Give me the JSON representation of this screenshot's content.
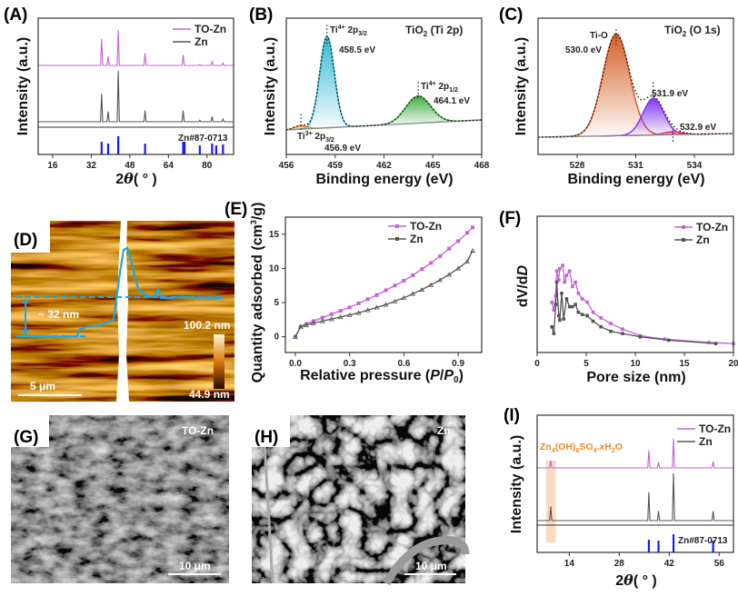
{
  "panels": {
    "A": "(A)",
    "B": "(B)",
    "C": "(C)",
    "D": "(D)",
    "E": "(E)",
    "F": "(F)",
    "G": "(G)",
    "H": "(H)",
    "I": "(I)"
  },
  "colors": {
    "to_zn": "#c462d6",
    "zn": "#555555",
    "reference": "#1a1aff",
    "highlight": "#f6d2b0",
    "afm_profile": "#1ea7e6"
  },
  "afm": {
    "step_label": "~ 32 nm",
    "colorbar_max": "100.2 nm",
    "colorbar_min": "44.9 nm",
    "scale_bar": "5  μm"
  },
  "sem_g": {
    "sample": "TO-Zn",
    "scale_bar": "10  μm"
  },
  "sem_h": {
    "sample": "Zn",
    "scale_bar": "10  μm"
  },
  "chart_data": [
    {
      "id": "A",
      "type": "line",
      "ylabel": "Intensity (a.u.)",
      "xlabel_base": "2",
      "xlabel_theta": "θ",
      "xlabel_unit": "( ° )",
      "xlim": [
        10,
        91
      ],
      "xticks": [
        "16",
        "32",
        "48",
        "64",
        "80"
      ],
      "legend": [
        "TO-Zn",
        "Zn"
      ],
      "legend_position": "top-right",
      "series": [
        {
          "name": "TO-Zn",
          "peaks": [
            [
              36.3,
              0.75
            ],
            [
              39.0,
              0.25
            ],
            [
              43.2,
              1.0
            ],
            [
              54.3,
              0.35
            ],
            [
              70.1,
              0.3
            ],
            [
              77.0,
              0.03
            ],
            [
              82.1,
              0.12
            ],
            [
              86.6,
              0.07
            ]
          ]
        },
        {
          "name": "Zn",
          "peaks": [
            [
              36.3,
              0.55
            ],
            [
              39.0,
              0.2
            ],
            [
              43.2,
              1.0
            ],
            [
              54.3,
              0.22
            ],
            [
              70.1,
              0.22
            ],
            [
              77.0,
              0.03
            ],
            [
              82.1,
              0.1
            ],
            [
              86.6,
              0.05
            ]
          ]
        }
      ],
      "reference": {
        "name": "Zn#87-0713",
        "lines": [
          [
            36.3,
            0.7
          ],
          [
            39.0,
            0.6
          ],
          [
            43.2,
            1.0
          ],
          [
            54.3,
            0.6
          ],
          [
            70.1,
            0.7
          ],
          [
            70.7,
            0.7
          ],
          [
            77.0,
            0.5
          ],
          [
            82.1,
            0.6
          ],
          [
            83.8,
            0.5
          ],
          [
            86.6,
            0.55
          ]
        ]
      }
    },
    {
      "id": "B",
      "type": "area",
      "ylabel": "Intensity (a.u.)",
      "xlabel": "Binding energy (eV)",
      "title": "TiO",
      "title_sub": "2",
      "title_rest": " (Ti 2p)",
      "xlim": [
        456,
        468
      ],
      "xticks": [
        "456",
        "459",
        "462",
        "465",
        "468"
      ],
      "peaks": [
        {
          "center": 458.5,
          "height": 0.98,
          "fwhm": 1.05,
          "color": "#2ab4d1",
          "ion": "Ti",
          "sup": "4+",
          "orb": " 2p",
          "sub": "3/2",
          "energy": "458.5 eV"
        },
        {
          "center": 464.1,
          "height": 0.29,
          "fwhm": 1.8,
          "color": "#3aa63a",
          "ion": "Ti",
          "sup": "4+",
          "orb": " 2p",
          "sub": "1/2",
          "energy": "464.1 eV"
        },
        {
          "center": 456.9,
          "height": 0.04,
          "fwhm": 0.9,
          "color": "#f08a2a",
          "ion": "Ti",
          "sup": "3+",
          "orb": " 2p",
          "sub": "3/2",
          "energy": "456.9 eV"
        }
      ]
    },
    {
      "id": "C",
      "type": "area",
      "ylabel": "Intensity (a.u.)",
      "xlabel": "Binding energy (eV)",
      "title": "TiO",
      "title_sub": "2",
      "title_rest": "  (O 1s)",
      "xlim": [
        526,
        536
      ],
      "xticks": [
        "528",
        "531",
        "534"
      ],
      "peaks": [
        {
          "center": 530.0,
          "height": 1.0,
          "fwhm": 1.6,
          "color": "#d4561c",
          "label": "Ti-O",
          "energy": "530.0 eV"
        },
        {
          "center": 531.9,
          "height": 0.36,
          "fwhm": 1.25,
          "color": "#7b2cf2",
          "energy": "531.9 eV"
        },
        {
          "center": 532.9,
          "height": 0.03,
          "fwhm": 1.1,
          "color": "#f0307a",
          "energy": "532.9 eV"
        }
      ]
    },
    {
      "id": "E",
      "type": "line",
      "ylabel": "Quantity  adsorbed (cm",
      "ylabel_sup": "3",
      "ylabel_end": "/g)",
      "xlabel": "Relative pressure (",
      "xlabel_p": "P",
      "xlabel_slash": "/",
      "xlabel_p0": "P",
      "xlabel_sub": "0",
      "xlabel_end": ")",
      "xlim": [
        -0.055,
        1.03
      ],
      "ylim": [
        -2.3,
        17.5
      ],
      "xticks": [
        "0.0",
        "0.3",
        "0.6",
        "0.9"
      ],
      "yticks": [
        "0",
        "5",
        "10",
        "15"
      ],
      "legend": [
        "TO-Zn",
        "Zn"
      ],
      "legend_position": "top-right",
      "x": [
        0,
        0.03,
        0.06,
        0.1,
        0.15,
        0.2,
        0.25,
        0.3,
        0.35,
        0.4,
        0.45,
        0.5,
        0.55,
        0.6,
        0.65,
        0.7,
        0.75,
        0.8,
        0.85,
        0.9,
        0.95,
        0.98
      ],
      "series": [
        {
          "name": "TO-Zn",
          "values": [
            0,
            1.5,
            1.9,
            2.3,
            2.8,
            3.3,
            3.8,
            4.3,
            4.9,
            5.5,
            6.1,
            6.8,
            7.5,
            8.2,
            9.0,
            9.9,
            10.8,
            11.8,
            12.9,
            14.0,
            15.2,
            16.0
          ]
        },
        {
          "name": "Zn",
          "values": [
            0,
            1.5,
            1.7,
            2.0,
            2.3,
            2.6,
            2.9,
            3.2,
            3.5,
            3.9,
            4.3,
            4.7,
            5.2,
            5.7,
            6.3,
            6.9,
            7.6,
            8.3,
            9.1,
            10.0,
            11.0,
            12.6
          ]
        }
      ]
    },
    {
      "id": "F",
      "type": "line",
      "ylabel_pre": "dV/d",
      "ylabel_it": "D",
      "xlabel": "Pore size (nm)",
      "xlim": [
        0,
        20
      ],
      "ylim": [
        -0.03,
        1.19
      ],
      "xticks": [
        "0",
        "5",
        "10",
        "15",
        "20"
      ],
      "legend": [
        "TO-Zn",
        "Zn"
      ],
      "legend_position": "top-right",
      "series": [
        {
          "name": "TO-Zn",
          "points": [
            [
              1.5,
              0.42
            ],
            [
              1.7,
              0.35
            ],
            [
              1.9,
              0.48
            ],
            [
              2.0,
              0.7
            ],
            [
              2.2,
              0.62
            ],
            [
              2.3,
              0.72
            ],
            [
              2.6,
              0.75
            ],
            [
              2.8,
              0.6
            ],
            [
              3.0,
              0.66
            ],
            [
              3.3,
              0.7
            ],
            [
              3.6,
              0.56
            ],
            [
              3.9,
              0.6
            ],
            [
              4.2,
              0.5
            ],
            [
              4.6,
              0.45
            ],
            [
              5.1,
              0.42
            ],
            [
              5.7,
              0.33
            ],
            [
              6.5,
              0.28
            ],
            [
              7.5,
              0.23
            ],
            [
              8.7,
              0.18
            ],
            [
              10.5,
              0.12
            ],
            [
              13.0,
              0.09
            ],
            [
              17.5,
              0.06
            ],
            [
              20,
              0.05
            ]
          ]
        },
        {
          "name": "Zn",
          "points": [
            [
              1.5,
              0.2
            ],
            [
              1.7,
              0.14
            ],
            [
              1.9,
              0.4
            ],
            [
              2.0,
              0.6
            ],
            [
              2.2,
              0.3
            ],
            [
              2.3,
              0.26
            ],
            [
              2.5,
              0.5
            ],
            [
              2.7,
              0.27
            ],
            [
              3.0,
              0.45
            ],
            [
              3.3,
              0.38
            ],
            [
              3.6,
              0.38
            ],
            [
              3.9,
              0.4
            ],
            [
              4.2,
              0.33
            ],
            [
              4.6,
              0.31
            ],
            [
              5.1,
              0.3
            ],
            [
              5.7,
              0.25
            ],
            [
              6.5,
              0.2
            ],
            [
              7.5,
              0.16
            ],
            [
              8.7,
              0.14
            ],
            [
              10.5,
              0.11
            ],
            [
              13.4,
              0.08
            ],
            [
              18.2,
              0.05
            ]
          ]
        }
      ]
    },
    {
      "id": "I",
      "type": "line",
      "ylabel": "Intensity (a.u.)",
      "xlabel_base": "2",
      "xlabel_theta": "θ",
      "xlabel_unit": "( ° )",
      "xlim": [
        5,
        60
      ],
      "xticks": [
        "14",
        "28",
        "42",
        "56"
      ],
      "legend": [
        "TO-Zn",
        "Zn"
      ],
      "legend_position": "top-right",
      "annotation": {
        "a": "Zn",
        "b": "4",
        "c": "(OH)",
        "d": "6",
        "e": "SO",
        "f": "4",
        "g": ".",
        "h": "x",
        "i": "H",
        "j": "2",
        "k": "O",
        "range": [
          7.5,
          10.2
        ]
      },
      "series": [
        {
          "name": "TO-Zn",
          "peaks": [
            [
              8.8,
              0.25
            ],
            [
              36.3,
              0.6
            ],
            [
              39.0,
              0.2
            ],
            [
              43.2,
              1.0
            ],
            [
              54.3,
              0.22
            ]
          ]
        },
        {
          "name": "Zn",
          "peaks": [
            [
              8.8,
              0.3
            ],
            [
              36.3,
              0.6
            ],
            [
              39.0,
              0.2
            ],
            [
              43.2,
              1.0
            ],
            [
              54.3,
              0.2
            ]
          ]
        }
      ],
      "reference": {
        "name": "Zn#87-0713",
        "lines": [
          [
            36.3,
            0.7
          ],
          [
            39.0,
            0.65
          ],
          [
            43.2,
            1.0
          ],
          [
            54.3,
            0.65
          ]
        ]
      }
    }
  ]
}
